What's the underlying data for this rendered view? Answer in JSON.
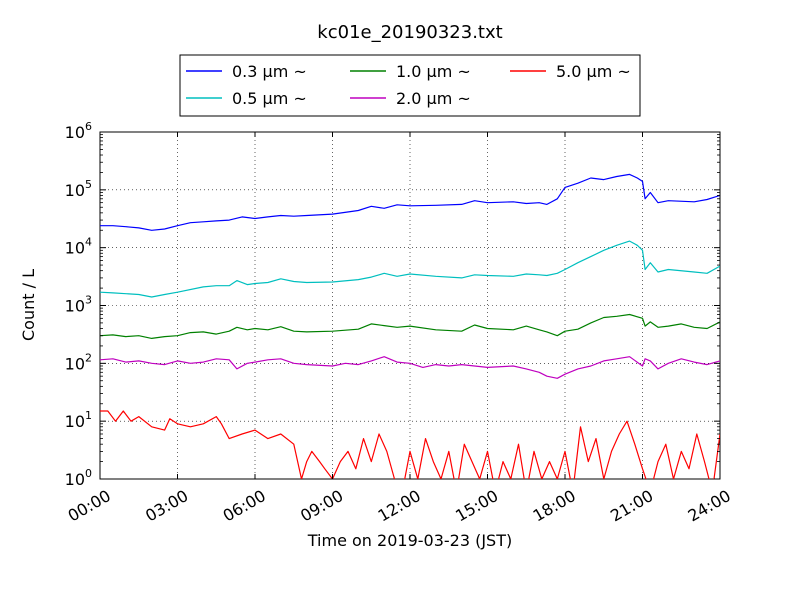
{
  "chart_data": {
    "type": "line",
    "title": "kc01e_20190323.txt",
    "xlabel": "Time on 2019-03-23 (JST)",
    "ylabel": "Count / L",
    "x_unit": "hours",
    "xlim": [
      0,
      24
    ],
    "x_ticks": [
      {
        "value": 0,
        "label": "00:00"
      },
      {
        "value": 3,
        "label": "03:00"
      },
      {
        "value": 6,
        "label": "06:00"
      },
      {
        "value": 9,
        "label": "09:00"
      },
      {
        "value": 12,
        "label": "12:00"
      },
      {
        "value": 15,
        "label": "15:00"
      },
      {
        "value": 18,
        "label": "18:00"
      },
      {
        "value": 21,
        "label": "21:00"
      },
      {
        "value": 24,
        "label": "24:00"
      }
    ],
    "y_scale": "log",
    "ylim": [
      1,
      1000000
    ],
    "y_ticks": [
      {
        "value": 1,
        "base": "10",
        "exp": "0"
      },
      {
        "value": 10,
        "base": "10",
        "exp": "1"
      },
      {
        "value": 100,
        "base": "10",
        "exp": "2"
      },
      {
        "value": 1000,
        "base": "10",
        "exp": "3"
      },
      {
        "value": 10000,
        "base": "10",
        "exp": "4"
      },
      {
        "value": 100000,
        "base": "10",
        "exp": "5"
      },
      {
        "value": 1000000,
        "base": "10",
        "exp": "6"
      }
    ],
    "grid": true,
    "legend_position": "top-center",
    "series": [
      {
        "name": "0.3 μm ~",
        "color": "#0000ff",
        "points": [
          [
            0,
            24000
          ],
          [
            0.5,
            24000
          ],
          [
            1,
            23000
          ],
          [
            1.5,
            22000
          ],
          [
            2,
            20000
          ],
          [
            2.5,
            21000
          ],
          [
            3,
            24000
          ],
          [
            3.5,
            27000
          ],
          [
            4,
            28000
          ],
          [
            4.5,
            29000
          ],
          [
            5,
            30000
          ],
          [
            5.5,
            34000
          ],
          [
            6,
            32000
          ],
          [
            6.5,
            34000
          ],
          [
            7,
            36000
          ],
          [
            7.5,
            35000
          ],
          [
            8,
            36000
          ],
          [
            9,
            38000
          ],
          [
            10,
            44000
          ],
          [
            10.5,
            52000
          ],
          [
            11,
            48000
          ],
          [
            11.5,
            55000
          ],
          [
            12,
            53000
          ],
          [
            13,
            54000
          ],
          [
            14,
            56000
          ],
          [
            14.5,
            65000
          ],
          [
            15,
            60000
          ],
          [
            16,
            62000
          ],
          [
            16.5,
            58000
          ],
          [
            17,
            60000
          ],
          [
            17.3,
            56000
          ],
          [
            17.7,
            70000
          ],
          [
            18,
            110000
          ],
          [
            18.5,
            130000
          ],
          [
            19,
            160000
          ],
          [
            19.5,
            150000
          ],
          [
            20,
            170000
          ],
          [
            20.5,
            185000
          ],
          [
            20.8,
            160000
          ],
          [
            21,
            140000
          ],
          [
            21.1,
            70000
          ],
          [
            21.3,
            90000
          ],
          [
            21.6,
            60000
          ],
          [
            22,
            65000
          ],
          [
            23,
            62000
          ],
          [
            23.5,
            68000
          ],
          [
            24,
            80000
          ]
        ]
      },
      {
        "name": "0.5 μm ~",
        "color": "#00bfbf",
        "points": [
          [
            0,
            1700
          ],
          [
            0.5,
            1650
          ],
          [
            1,
            1600
          ],
          [
            1.5,
            1550
          ],
          [
            2,
            1400
          ],
          [
            2.5,
            1550
          ],
          [
            3,
            1700
          ],
          [
            4,
            2100
          ],
          [
            4.5,
            2200
          ],
          [
            5,
            2200
          ],
          [
            5.3,
            2700
          ],
          [
            5.7,
            2300
          ],
          [
            6,
            2400
          ],
          [
            6.5,
            2500
          ],
          [
            7,
            2900
          ],
          [
            7.5,
            2600
          ],
          [
            8,
            2500
          ],
          [
            9,
            2550
          ],
          [
            10,
            2800
          ],
          [
            10.5,
            3100
          ],
          [
            11,
            3600
          ],
          [
            11.5,
            3200
          ],
          [
            12,
            3500
          ],
          [
            13,
            3200
          ],
          [
            14,
            3000
          ],
          [
            14.5,
            3400
          ],
          [
            15,
            3300
          ],
          [
            16,
            3200
          ],
          [
            16.5,
            3500
          ],
          [
            17,
            3400
          ],
          [
            17.3,
            3300
          ],
          [
            17.7,
            3600
          ],
          [
            18,
            4200
          ],
          [
            18.5,
            5500
          ],
          [
            19,
            7000
          ],
          [
            19.5,
            9000
          ],
          [
            20,
            11000
          ],
          [
            20.5,
            13000
          ],
          [
            20.8,
            11000
          ],
          [
            21,
            9000
          ],
          [
            21.1,
            4200
          ],
          [
            21.3,
            5500
          ],
          [
            21.6,
            3800
          ],
          [
            22,
            4200
          ],
          [
            23,
            3800
          ],
          [
            23.5,
            3600
          ],
          [
            24,
            4800
          ]
        ]
      },
      {
        "name": "1.0 μm ~",
        "color": "#008000",
        "points": [
          [
            0,
            300
          ],
          [
            0.5,
            310
          ],
          [
            1,
            290
          ],
          [
            1.5,
            300
          ],
          [
            2,
            270
          ],
          [
            2.5,
            290
          ],
          [
            3,
            300
          ],
          [
            3.5,
            340
          ],
          [
            4,
            350
          ],
          [
            4.5,
            320
          ],
          [
            5,
            360
          ],
          [
            5.3,
            420
          ],
          [
            5.7,
            380
          ],
          [
            6,
            400
          ],
          [
            6.5,
            380
          ],
          [
            7,
            430
          ],
          [
            7.5,
            360
          ],
          [
            8,
            350
          ],
          [
            9,
            360
          ],
          [
            10,
            390
          ],
          [
            10.5,
            480
          ],
          [
            11,
            450
          ],
          [
            11.5,
            420
          ],
          [
            12,
            440
          ],
          [
            13,
            380
          ],
          [
            14,
            360
          ],
          [
            14.5,
            460
          ],
          [
            15,
            400
          ],
          [
            16,
            380
          ],
          [
            16.5,
            440
          ],
          [
            17,
            380
          ],
          [
            17.3,
            350
          ],
          [
            17.7,
            300
          ],
          [
            18,
            360
          ],
          [
            18.5,
            390
          ],
          [
            19,
            500
          ],
          [
            19.5,
            620
          ],
          [
            20,
            650
          ],
          [
            20.5,
            700
          ],
          [
            21,
            600
          ],
          [
            21.1,
            440
          ],
          [
            21.3,
            520
          ],
          [
            21.6,
            420
          ],
          [
            22,
            440
          ],
          [
            22.5,
            480
          ],
          [
            23,
            420
          ],
          [
            23.5,
            400
          ],
          [
            24,
            520
          ]
        ]
      },
      {
        "name": "2.0 μm ~",
        "color": "#bf00bf",
        "points": [
          [
            0,
            115
          ],
          [
            0.5,
            120
          ],
          [
            1,
            105
          ],
          [
            1.5,
            110
          ],
          [
            2,
            100
          ],
          [
            2.5,
            95
          ],
          [
            3,
            110
          ],
          [
            3.5,
            100
          ],
          [
            4,
            105
          ],
          [
            4.5,
            120
          ],
          [
            5,
            115
          ],
          [
            5.3,
            80
          ],
          [
            5.7,
            100
          ],
          [
            6,
            105
          ],
          [
            6.5,
            115
          ],
          [
            7,
            120
          ],
          [
            7.5,
            100
          ],
          [
            8,
            95
          ],
          [
            9,
            90
          ],
          [
            9.5,
            100
          ],
          [
            10,
            95
          ],
          [
            10.5,
            110
          ],
          [
            11,
            130
          ],
          [
            11.5,
            105
          ],
          [
            12,
            100
          ],
          [
            12.5,
            85
          ],
          [
            13,
            95
          ],
          [
            13.5,
            90
          ],
          [
            14,
            95
          ],
          [
            15,
            85
          ],
          [
            16,
            90
          ],
          [
            16.5,
            80
          ],
          [
            17,
            70
          ],
          [
            17.3,
            60
          ],
          [
            17.7,
            55
          ],
          [
            18,
            65
          ],
          [
            18.5,
            80
          ],
          [
            19,
            90
          ],
          [
            19.5,
            110
          ],
          [
            20,
            120
          ],
          [
            20.5,
            130
          ],
          [
            21,
            90
          ],
          [
            21.1,
            120
          ],
          [
            21.3,
            110
          ],
          [
            21.6,
            80
          ],
          [
            22,
            100
          ],
          [
            22.5,
            120
          ],
          [
            23,
            105
          ],
          [
            23.5,
            95
          ],
          [
            24,
            110
          ]
        ]
      },
      {
        "name": "5.0 μm ~",
        "color": "#ff0000",
        "points": [
          [
            0,
            15
          ],
          [
            0.3,
            15
          ],
          [
            0.6,
            10
          ],
          [
            0.9,
            15
          ],
          [
            1.2,
            10
          ],
          [
            1.5,
            12
          ],
          [
            2,
            8
          ],
          [
            2.5,
            7
          ],
          [
            2.7,
            11
          ],
          [
            3,
            9
          ],
          [
            3.5,
            8
          ],
          [
            4,
            9
          ],
          [
            4.5,
            12
          ],
          [
            4.7,
            9
          ],
          [
            5,
            5
          ],
          [
            5.5,
            6
          ],
          [
            6,
            7
          ],
          [
            6.5,
            5
          ],
          [
            7,
            6
          ],
          [
            7.5,
            4
          ],
          [
            7.8,
            1
          ],
          [
            8,
            2
          ],
          [
            8.2,
            3
          ],
          [
            8.5,
            2
          ],
          [
            8.7,
            1.5
          ],
          [
            9,
            1
          ],
          [
            9.3,
            2
          ],
          [
            9.6,
            3
          ],
          [
            9.9,
            1.5
          ],
          [
            10.2,
            5
          ],
          [
            10.5,
            2
          ],
          [
            10.8,
            6
          ],
          [
            11.1,
            3
          ],
          [
            11.4,
            1
          ],
          [
            11.7,
            0.6
          ],
          [
            12,
            3
          ],
          [
            12.3,
            1
          ],
          [
            12.6,
            5
          ],
          [
            12.9,
            2
          ],
          [
            13.2,
            1
          ],
          [
            13.5,
            3
          ],
          [
            13.8,
            0.6
          ],
          [
            14.1,
            4
          ],
          [
            14.4,
            2
          ],
          [
            14.7,
            1
          ],
          [
            15,
            3
          ],
          [
            15.3,
            0.6
          ],
          [
            15.6,
            2
          ],
          [
            15.9,
            1
          ],
          [
            16.2,
            4
          ],
          [
            16.5,
            0.6
          ],
          [
            16.8,
            3
          ],
          [
            17.1,
            1
          ],
          [
            17.4,
            2
          ],
          [
            17.7,
            1
          ],
          [
            18,
            3
          ],
          [
            18.3,
            0.6
          ],
          [
            18.6,
            8
          ],
          [
            18.9,
            2
          ],
          [
            19.2,
            5
          ],
          [
            19.5,
            1
          ],
          [
            19.8,
            3
          ],
          [
            20.1,
            6
          ],
          [
            20.4,
            10
          ],
          [
            20.7,
            4
          ],
          [
            21,
            1.5
          ],
          [
            21.3,
            0.6
          ],
          [
            21.6,
            2
          ],
          [
            21.9,
            4
          ],
          [
            22.2,
            1
          ],
          [
            22.5,
            3
          ],
          [
            22.8,
            1.5
          ],
          [
            23.1,
            6
          ],
          [
            23.4,
            2
          ],
          [
            23.7,
            0.6
          ],
          [
            24,
            6
          ]
        ]
      }
    ]
  }
}
